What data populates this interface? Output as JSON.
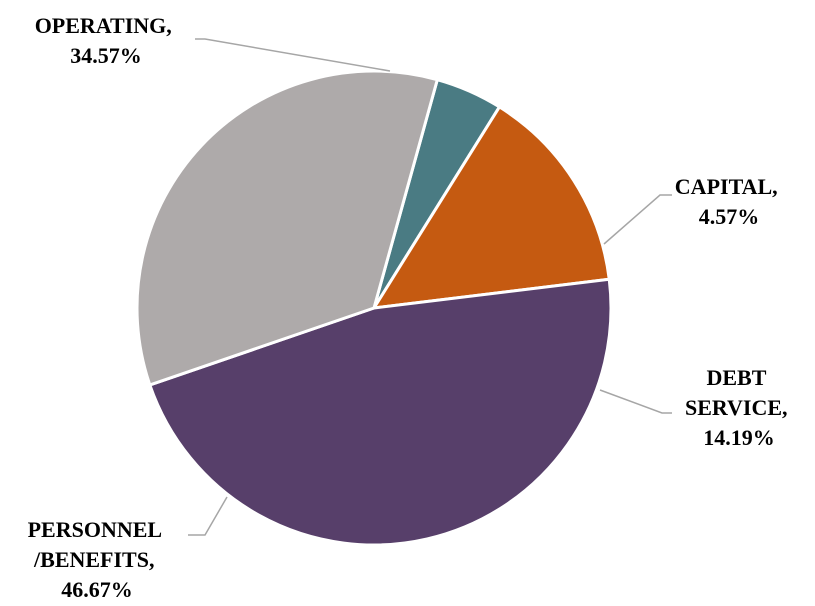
{
  "chart_data": {
    "type": "pie",
    "title": "",
    "slices": [
      {
        "category": "CAPITAL",
        "value": 4.57,
        "display": "4.57%",
        "color": "#4a7b83"
      },
      {
        "category": "DEBT SERVICE",
        "value": 14.19,
        "display": "14.19%",
        "color": "#c55a11"
      },
      {
        "category": "PERSONNEL /BENEFITS",
        "value": 46.67,
        "display": "46.67%",
        "color": "#573f6a"
      },
      {
        "category": "OPERATING",
        "value": 34.57,
        "display": "34.57%",
        "color": "#aeaaaa"
      }
    ],
    "labels": {
      "capital": {
        "lines": [
          "CAPITAL,",
          "4.57%"
        ]
      },
      "debt_service": {
        "lines": [
          "DEBT",
          "SERVICE,",
          "14.19%"
        ]
      },
      "personnel": {
        "lines": [
          "PERSONNEL",
          "/BENEFITS,",
          "46.67%"
        ]
      },
      "operating": {
        "lines": [
          "OPERATING,",
          "34.57%"
        ]
      }
    },
    "legend": "none",
    "data_labels": "outside with leader lines"
  }
}
